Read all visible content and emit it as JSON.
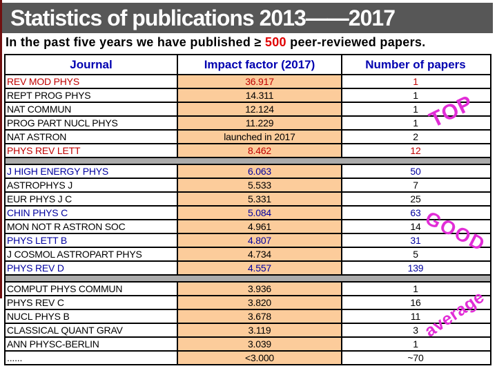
{
  "slide": {
    "title": "Statistics of publications 2013——2017",
    "subtitle": {
      "prefix": "In the past five years we have published ≥ ",
      "highlight": "500",
      "suffix": " peer-reviewed papers."
    }
  },
  "table": {
    "columns": [
      "Journal",
      "Impact factor (2017)",
      "Number of papers"
    ],
    "sections": [
      {
        "label": "TOP",
        "rows": [
          {
            "journal": "REV MOD PHYS",
            "impact": "36.917",
            "papers": "1",
            "color": "red"
          },
          {
            "journal": "REPT PROG PHYS",
            "impact": "14.311",
            "papers": "1",
            "color": "black"
          },
          {
            "journal": "NAT COMMUN",
            "impact": "12.124",
            "papers": "1",
            "color": "black"
          },
          {
            "journal": "PROG PART NUCL PHYS",
            "impact": "11.229",
            "papers": "1",
            "color": "black"
          },
          {
            "journal": "NAT ASTRON",
            "impact": "launched in 2017",
            "papers": "2",
            "color": "black"
          },
          {
            "journal": "PHYS REV LETT",
            "impact": "8.462",
            "papers": "12",
            "color": "red"
          }
        ]
      },
      {
        "label": "GOOD",
        "rows": [
          {
            "journal": "J HIGH ENERGY PHYS",
            "impact": "6.063",
            "papers": "50",
            "color": "blue"
          },
          {
            "journal": "ASTROPHYS J",
            "impact": "5.533",
            "papers": "7",
            "color": "black"
          },
          {
            "journal": "EUR PHYS J C",
            "impact": "5.331",
            "papers": "25",
            "color": "black"
          },
          {
            "journal": "CHIN PHYS C",
            "impact": "5.084",
            "papers": "63",
            "color": "blue"
          },
          {
            "journal": "MON NOT R ASTRON SOC",
            "impact": "4.961",
            "papers": "14",
            "color": "black"
          },
          {
            "journal": "PHYS LETT B",
            "impact": "4.807",
            "papers": "31",
            "color": "blue"
          },
          {
            "journal": "J COSMOL ASTROPART PHYS",
            "impact": "4.734",
            "papers": "5",
            "color": "black"
          },
          {
            "journal": "PHYS REV D",
            "impact": "4.557",
            "papers": "139",
            "color": "blue"
          }
        ]
      },
      {
        "label": "average",
        "rows": [
          {
            "journal": "COMPUT PHYS COMMUN",
            "impact": "3.936",
            "papers": "1",
            "color": "black"
          },
          {
            "journal": "PHYS REV C",
            "impact": "3.820",
            "papers": "16",
            "color": "black"
          },
          {
            "journal": "NUCL PHYS B",
            "impact": "3.678",
            "papers": "11",
            "color": "black"
          },
          {
            "journal": "CLASSICAL QUANT GRAV",
            "impact": "3.119",
            "papers": "3",
            "color": "black"
          },
          {
            "journal": "ANN PHYSC-BERLIN",
            "impact": "3.039",
            "papers": "1",
            "color": "black"
          },
          {
            "journal": "......",
            "impact": "<3.000",
            "papers": "~70",
            "color": "black"
          }
        ]
      }
    ]
  },
  "watermarks": [
    {
      "name": "top",
      "text": "TOP"
    },
    {
      "name": "good",
      "text": "GOOD"
    },
    {
      "name": "average",
      "text": "average"
    }
  ],
  "colors": {
    "title_bar_bg": "#575757",
    "title_text": "#FFFFFF",
    "subtitle_highlight": "#E00000",
    "header_text": "#0000B0",
    "row_red": "#C00000",
    "row_blue": "#0000A0",
    "row_black": "#000000",
    "impact_cell_bg": "#FCCC9B",
    "separator_bg": "#ABABAB",
    "watermark": "#E12DD6",
    "left_edge_stripe": "#701010"
  }
}
